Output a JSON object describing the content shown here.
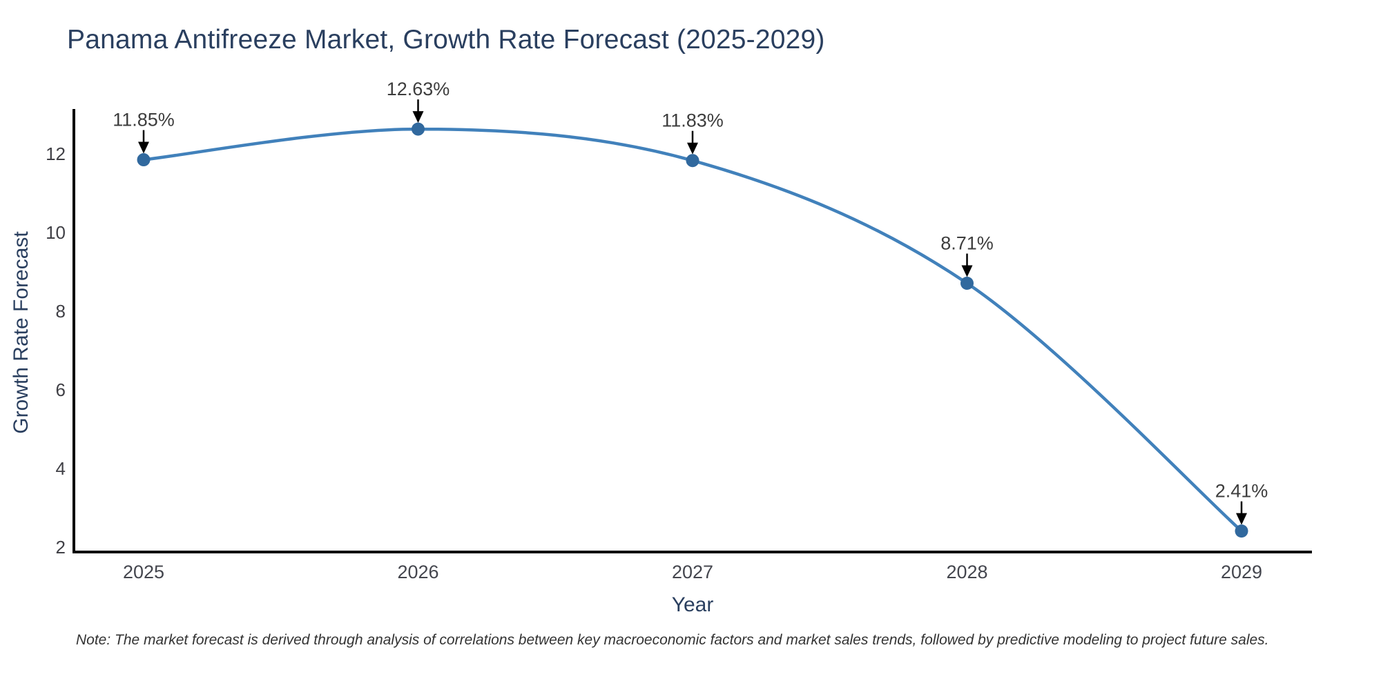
{
  "chart_data": {
    "type": "line",
    "title": "Panama Antifreeze Market, Growth Rate Forecast (2025-2029)",
    "xlabel": "Year",
    "ylabel": "Growth Rate Forecast",
    "x": [
      "2025",
      "2026",
      "2027",
      "2028",
      "2029"
    ],
    "series": [
      {
        "name": "Growth Rate Forecast",
        "values": [
          11.85,
          12.63,
          11.83,
          8.71,
          2.41
        ],
        "point_labels": [
          "11.85%",
          "12.63%",
          "11.83%",
          "8.71%",
          "2.41%"
        ]
      }
    ],
    "yticks": [
      2,
      4,
      6,
      8,
      10,
      12
    ],
    "ylim": [
      1.9,
      13.2
    ],
    "grid": false,
    "legend_position": "none",
    "line_shape": "spline",
    "colors": {
      "line": "#4181bb",
      "marker": "#31699e",
      "axis": "#000000",
      "annotation_arrow": "#000000"
    }
  },
  "note": {
    "text": "Note: The market forecast is derived through analysis of correlations between key macroeconomic factors and market sales trends, followed by predictive modeling to project future sales."
  }
}
